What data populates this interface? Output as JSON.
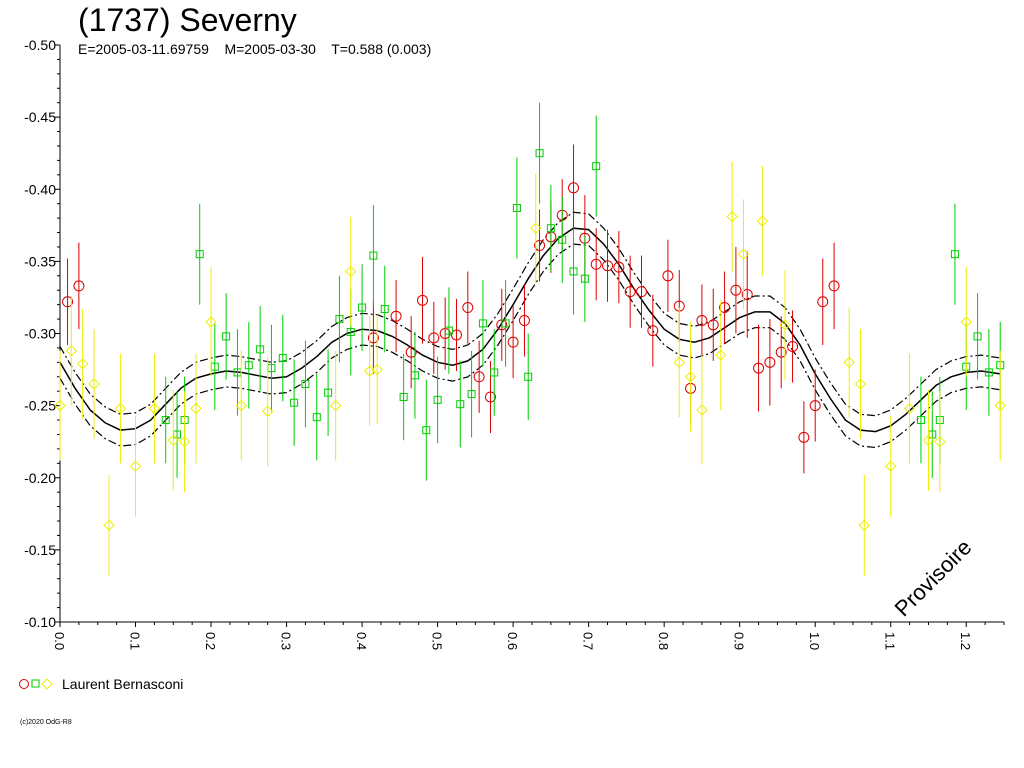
{
  "title": "(1737) Severny",
  "subtitle": "E=2005-03-11.69759    M=2005-03-30    T=0.588 (0.003)",
  "watermark": "Provisoire",
  "copyright": "(c)2020 OdG-R8",
  "legend": {
    "label": "Laurent Bernasconi",
    "markers": [
      "circle",
      "square",
      "diamond"
    ]
  },
  "colors": {
    "red": "#dd0000",
    "green": "#00cc00",
    "yellow": "#eeee00",
    "curve": "#000000"
  },
  "chart_data": {
    "type": "scatter",
    "xlim": [
      0,
      1.25
    ],
    "ylim": [
      -0.5,
      -0.1
    ],
    "y_inverted": true,
    "xticks": [
      "0.0",
      "0.1",
      "0.2",
      "0.3",
      "0.4",
      "0.5",
      "0.6",
      "0.7",
      "0.8",
      "0.9",
      "1.0",
      "1.1",
      "1.2"
    ],
    "yticks": [
      "-0.50",
      "-0.45",
      "-0.40",
      "-0.35",
      "-0.30",
      "-0.25",
      "-0.20",
      "-0.15",
      "-0.10"
    ],
    "xlabel": "",
    "ylabel": "",
    "grid": false,
    "fit_curve": {
      "points": [
        [
          0.0,
          -0.28
        ],
        [
          0.02,
          -0.262
        ],
        [
          0.04,
          -0.247
        ],
        [
          0.06,
          -0.238
        ],
        [
          0.08,
          -0.233
        ],
        [
          0.1,
          -0.234
        ],
        [
          0.12,
          -0.24
        ],
        [
          0.14,
          -0.251
        ],
        [
          0.16,
          -0.262
        ],
        [
          0.18,
          -0.269
        ],
        [
          0.2,
          -0.272
        ],
        [
          0.22,
          -0.274
        ],
        [
          0.24,
          -0.273
        ],
        [
          0.26,
          -0.271
        ],
        [
          0.28,
          -0.269
        ],
        [
          0.3,
          -0.27
        ],
        [
          0.32,
          -0.276
        ],
        [
          0.34,
          -0.284
        ],
        [
          0.36,
          -0.294
        ],
        [
          0.38,
          -0.3
        ],
        [
          0.4,
          -0.303
        ],
        [
          0.42,
          -0.302
        ],
        [
          0.44,
          -0.298
        ],
        [
          0.46,
          -0.292
        ],
        [
          0.48,
          -0.285
        ],
        [
          0.5,
          -0.28
        ],
        [
          0.52,
          -0.278
        ],
        [
          0.54,
          -0.281
        ],
        [
          0.56,
          -0.289
        ],
        [
          0.58,
          -0.303
        ],
        [
          0.6,
          -0.32
        ],
        [
          0.62,
          -0.338
        ],
        [
          0.64,
          -0.354
        ],
        [
          0.66,
          -0.366
        ],
        [
          0.68,
          -0.373
        ],
        [
          0.7,
          -0.372
        ],
        [
          0.72,
          -0.362
        ],
        [
          0.74,
          -0.348
        ],
        [
          0.76,
          -0.331
        ],
        [
          0.78,
          -0.316
        ],
        [
          0.8,
          -0.303
        ],
        [
          0.82,
          -0.296
        ],
        [
          0.84,
          -0.294
        ],
        [
          0.86,
          -0.297
        ],
        [
          0.88,
          -0.304
        ],
        [
          0.9,
          -0.311
        ],
        [
          0.92,
          -0.315
        ],
        [
          0.94,
          -0.315
        ],
        [
          0.96,
          -0.307
        ],
        [
          0.98,
          -0.292
        ],
        [
          1.0,
          -0.272
        ],
        [
          1.02,
          -0.255
        ],
        [
          1.04,
          -0.24
        ],
        [
          1.06,
          -0.233
        ],
        [
          1.08,
          -0.232
        ],
        [
          1.1,
          -0.236
        ],
        [
          1.12,
          -0.244
        ],
        [
          1.14,
          -0.254
        ],
        [
          1.16,
          -0.264
        ],
        [
          1.18,
          -0.27
        ],
        [
          1.2,
          -0.273
        ],
        [
          1.22,
          -0.274
        ],
        [
          1.245,
          -0.272
        ]
      ],
      "band": 0.011
    },
    "series": [
      {
        "marker": "circle",
        "color": "red",
        "points": [
          [
            0.01,
            -0.322,
            0.03
          ],
          [
            0.025,
            -0.333,
            0.03
          ],
          [
            0.415,
            -0.297,
            0.025
          ],
          [
            0.445,
            -0.312,
            0.025
          ],
          [
            0.465,
            -0.287,
            0.025
          ],
          [
            0.48,
            -0.323,
            0.03
          ],
          [
            0.495,
            -0.297,
            0.025
          ],
          [
            0.51,
            -0.3,
            0.025
          ],
          [
            0.525,
            -0.299,
            0.025
          ],
          [
            0.54,
            -0.318,
            0.025
          ],
          [
            0.555,
            -0.27,
            0.025
          ],
          [
            0.57,
            -0.256,
            0.025
          ],
          [
            0.585,
            -0.306,
            0.025
          ],
          [
            0.6,
            -0.294,
            0.025
          ],
          [
            0.615,
            -0.309,
            0.025
          ],
          [
            0.635,
            -0.361,
            0.025
          ],
          [
            0.65,
            -0.367,
            0.025
          ],
          [
            0.665,
            -0.382,
            0.025
          ],
          [
            0.68,
            -0.401,
            0.03
          ],
          [
            0.695,
            -0.366,
            0.03
          ],
          [
            0.71,
            -0.348,
            0.025
          ],
          [
            0.725,
            -0.347,
            0.025
          ],
          [
            0.74,
            -0.346,
            0.025
          ],
          [
            0.755,
            -0.329,
            0.025
          ],
          [
            0.77,
            -0.329,
            0.025
          ],
          [
            0.785,
            -0.302,
            0.025
          ],
          [
            0.805,
            -0.34,
            0.025
          ],
          [
            0.82,
            -0.319,
            0.025
          ],
          [
            0.835,
            -0.262,
            0.025
          ],
          [
            0.85,
            -0.309,
            0.025
          ],
          [
            0.865,
            -0.306,
            0.025
          ],
          [
            0.88,
            -0.318,
            0.025
          ],
          [
            0.895,
            -0.33,
            0.03
          ],
          [
            0.91,
            -0.327,
            0.03
          ],
          [
            0.925,
            -0.276,
            0.03
          ],
          [
            0.94,
            -0.28,
            0.03
          ],
          [
            0.955,
            -0.287,
            0.025
          ],
          [
            0.97,
            -0.291,
            0.025
          ],
          [
            0.985,
            -0.228,
            0.025
          ],
          [
            1.0,
            -0.25,
            0.025
          ],
          [
            1.01,
            -0.322,
            0.03
          ],
          [
            1.025,
            -0.333,
            0.03
          ]
        ]
      },
      {
        "marker": "square",
        "color": "green",
        "points": [
          [
            0.185,
            -0.355,
            0.035
          ],
          [
            0.205,
            -0.277,
            0.03
          ],
          [
            0.22,
            -0.298,
            0.03
          ],
          [
            0.235,
            -0.273,
            0.03
          ],
          [
            0.25,
            -0.278,
            0.03
          ],
          [
            0.265,
            -0.289,
            0.03
          ],
          [
            0.28,
            -0.276,
            0.03
          ],
          [
            0.295,
            -0.283,
            0.03
          ],
          [
            0.31,
            -0.252,
            0.03
          ],
          [
            0.325,
            -0.265,
            0.03
          ],
          [
            0.34,
            -0.242,
            0.03
          ],
          [
            0.355,
            -0.259,
            0.03
          ],
          [
            0.37,
            -0.31,
            0.03
          ],
          [
            0.385,
            -0.301,
            0.03
          ],
          [
            0.4,
            -0.318,
            0.03
          ],
          [
            0.415,
            -0.354,
            0.035
          ],
          [
            0.43,
            -0.317,
            0.03
          ],
          [
            0.455,
            -0.256,
            0.03
          ],
          [
            0.47,
            -0.271,
            0.03
          ],
          [
            0.485,
            -0.233,
            0.035
          ],
          [
            0.5,
            -0.254,
            0.03
          ],
          [
            0.515,
            -0.302,
            0.03
          ],
          [
            0.53,
            -0.251,
            0.03
          ],
          [
            0.545,
            -0.258,
            0.03
          ],
          [
            0.56,
            -0.307,
            0.03
          ],
          [
            0.575,
            -0.273,
            0.03
          ],
          [
            0.59,
            -0.307,
            0.03
          ],
          [
            0.605,
            -0.387,
            0.035
          ],
          [
            0.62,
            -0.27,
            0.03
          ],
          [
            0.635,
            -0.425,
            0.035
          ],
          [
            0.65,
            -0.373,
            0.03
          ],
          [
            0.665,
            -0.365,
            0.03
          ],
          [
            0.68,
            -0.343,
            0.03
          ],
          [
            0.695,
            -0.338,
            0.03
          ],
          [
            0.71,
            -0.416,
            0.035
          ],
          [
            0.155,
            -0.23,
            0.03
          ],
          [
            0.165,
            -0.24,
            0.03
          ],
          [
            0.14,
            -0.24,
            0.03
          ],
          [
            1.185,
            -0.355,
            0.035
          ],
          [
            1.2,
            -0.277,
            0.03
          ],
          [
            1.215,
            -0.298,
            0.03
          ],
          [
            1.23,
            -0.273,
            0.03
          ],
          [
            1.245,
            -0.278,
            0.03
          ],
          [
            1.14,
            -0.24,
            0.03
          ],
          [
            1.155,
            -0.23,
            0.03
          ],
          [
            1.165,
            -0.24,
            0.03
          ]
        ]
      },
      {
        "marker": "diamond",
        "color": "yellow",
        "points": [
          [
            0.0,
            -0.25,
            0.038
          ],
          [
            0.015,
            -0.288,
            0.038
          ],
          [
            0.03,
            -0.279,
            0.038
          ],
          [
            0.045,
            -0.265,
            0.038
          ],
          [
            0.065,
            -0.167,
            0.035
          ],
          [
            0.08,
            -0.248,
            0.038
          ],
          [
            0.1,
            -0.208,
            0.035
          ],
          [
            0.125,
            -0.248,
            0.038
          ],
          [
            0.15,
            -0.226,
            0.035
          ],
          [
            0.165,
            -0.225,
            0.035
          ],
          [
            0.18,
            -0.248,
            0.038
          ],
          [
            0.2,
            -0.308,
            0.038
          ],
          [
            0.24,
            -0.25,
            0.038
          ],
          [
            0.275,
            -0.246,
            0.038
          ],
          [
            0.365,
            -0.25,
            0.038
          ],
          [
            0.385,
            -0.343,
            0.038
          ],
          [
            0.41,
            -0.274,
            0.038
          ],
          [
            0.42,
            -0.275,
            0.038
          ],
          [
            0.63,
            -0.373,
            0.038
          ],
          [
            0.82,
            -0.28,
            0.038
          ],
          [
            0.835,
            -0.27,
            0.038
          ],
          [
            0.85,
            -0.247,
            0.038
          ],
          [
            0.875,
            -0.285,
            0.038
          ],
          [
            0.89,
            -0.381,
            0.038
          ],
          [
            0.905,
            -0.355,
            0.038
          ],
          [
            0.93,
            -0.378,
            0.038
          ],
          [
            0.96,
            -0.306,
            0.038
          ],
          [
            1.045,
            -0.28,
            0.038
          ],
          [
            1.06,
            -0.265,
            0.038
          ],
          [
            1.065,
            -0.167,
            0.035
          ],
          [
            1.1,
            -0.208,
            0.035
          ],
          [
            1.125,
            -0.248,
            0.038
          ],
          [
            1.15,
            -0.226,
            0.035
          ],
          [
            1.165,
            -0.225,
            0.035
          ],
          [
            1.2,
            -0.308,
            0.038
          ],
          [
            1.245,
            -0.25,
            0.038
          ]
        ]
      }
    ]
  }
}
